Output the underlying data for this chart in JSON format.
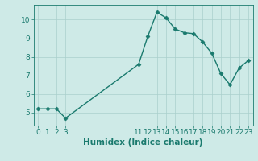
{
  "x": [
    0,
    1,
    2,
    3,
    11,
    12,
    13,
    14,
    15,
    16,
    17,
    18,
    19,
    20,
    21,
    22,
    23
  ],
  "y": [
    5.2,
    5.2,
    5.2,
    4.7,
    7.6,
    9.1,
    10.4,
    10.1,
    9.5,
    9.3,
    9.25,
    8.8,
    8.2,
    7.1,
    6.5,
    7.4,
    7.8
  ],
  "line_color": "#1a7a6e",
  "marker_color": "#1a7a6e",
  "bg_color": "#ceeae7",
  "grid_color": "#aacfcc",
  "xlabel": "Humidex (Indice chaleur)",
  "xlim": [
    -0.5,
    23.5
  ],
  "ylim": [
    4.3,
    10.8
  ],
  "yticks": [
    5,
    6,
    7,
    8,
    9,
    10
  ],
  "xticks": [
    0,
    1,
    2,
    3,
    11,
    12,
    13,
    14,
    15,
    16,
    17,
    18,
    19,
    20,
    21,
    22,
    23
  ],
  "tick_fontsize": 6.5,
  "xlabel_fontsize": 7.5,
  "marker_size": 2.5,
  "line_width": 1.0
}
